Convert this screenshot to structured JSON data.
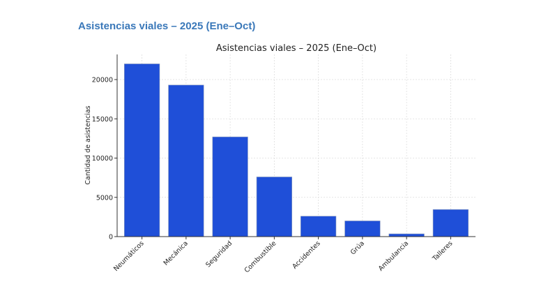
{
  "page": {
    "heading": "Asistencias viales – 2025 (Ene–Oct)"
  },
  "chart_data": {
    "type": "bar",
    "title": "Asistencias viales – 2025 (Ene–Oct)",
    "xlabel": "",
    "ylabel": "Cantidad de asistencias",
    "categories": [
      "Neumáticos",
      "Mecánica",
      "Seguridad",
      "Combustible",
      "Accidentes",
      "Grúa",
      "Ambulancia",
      "Talleres"
    ],
    "values": [
      22000,
      19300,
      12700,
      7600,
      2600,
      2000,
      350,
      3450
    ],
    "ylim": [
      0,
      23200
    ],
    "yticks": [
      0,
      5000,
      10000,
      15000,
      20000
    ],
    "grid": true,
    "bar_color": "#1f4fd8",
    "legend": "none"
  }
}
